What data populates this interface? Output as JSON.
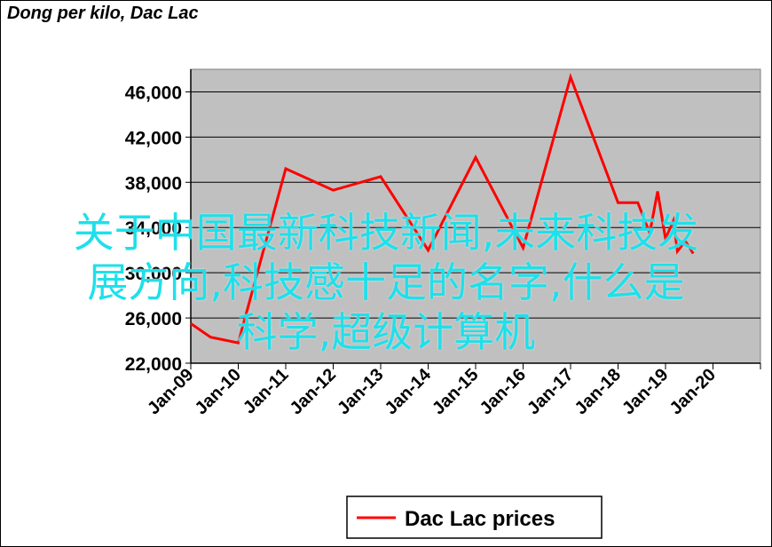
{
  "chart_data": {
    "type": "line",
    "title": "Dong per kilo, Dac Lac",
    "xlabel": "",
    "ylabel": "",
    "x_ticks": [
      "Jan-09",
      "Jan-10",
      "Jan-11",
      "Jan-12",
      "Jan-13",
      "Jan-14",
      "Jan-15",
      "Jan-16",
      "Jan-17",
      "Jan-18",
      "Jan-19",
      "Jan-20"
    ],
    "y_ticks": [
      "22,000",
      "26,000",
      "30,000",
      "34,000",
      "38,000",
      "42,000",
      "46,000"
    ],
    "ylim": [
      22000,
      48000
    ],
    "grid": true,
    "legend_position": "bottom",
    "colors": {
      "line": "#ff0000",
      "plot_bg": "#c0c0c0",
      "grid": "#000000"
    },
    "series": [
      {
        "name": "Dac Lac prices",
        "x": [
          "2009-01",
          "2009-06",
          "2010-01",
          "2011-01",
          "2012-01",
          "2013-01",
          "2014-01",
          "2015-01",
          "2016-01",
          "2017-01",
          "2018-01",
          "2018-06",
          "2018-09",
          "2018-11",
          "2019-01",
          "2019-03",
          "2019-04",
          "2019-06",
          "2019-08"
        ],
        "values": [
          25500,
          24300,
          23800,
          39200,
          37300,
          38500,
          32000,
          40200,
          32200,
          47300,
          36200,
          36200,
          33500,
          37200,
          33000,
          34600,
          31900,
          32800,
          31700
        ]
      }
    ]
  },
  "overlay_text": {
    "line1": "关于中国最新科技新闻,未来科技发",
    "line2": "展方向,科技感十足的名字,什么是",
    "line3": "科学,超级计算机"
  }
}
